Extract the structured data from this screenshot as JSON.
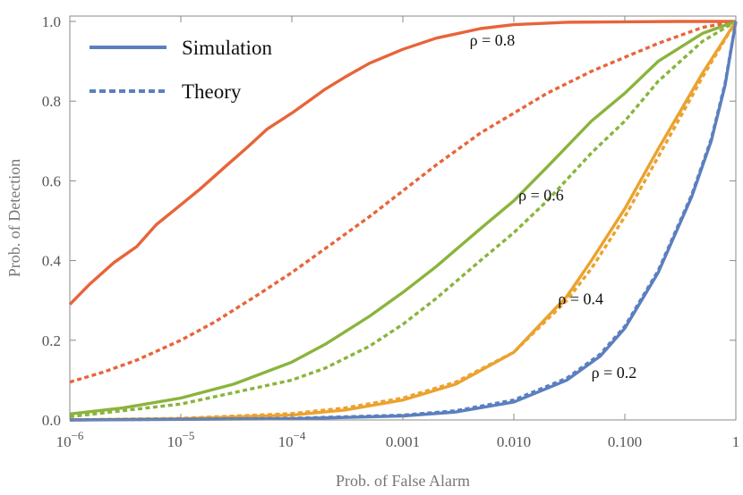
{
  "chart_data": {
    "type": "line",
    "xscale": "log",
    "xlim": [
      1e-06,
      1
    ],
    "ylim": [
      0,
      1
    ],
    "xlabel": "Prob. of False Alarm",
    "ylabel": "Prob. of Detection",
    "x_ticks": [
      {
        "value": 1e-06,
        "base": "10",
        "exp": "−6"
      },
      {
        "value": 1e-05,
        "base": "10",
        "exp": "−5"
      },
      {
        "value": 0.0001,
        "base": "10",
        "exp": "−4"
      },
      {
        "value": 0.001,
        "label": "0.001"
      },
      {
        "value": 0.01,
        "label": "0.010"
      },
      {
        "value": 0.1,
        "label": "0.100"
      },
      {
        "value": 1,
        "label": "1"
      }
    ],
    "y_ticks": [
      {
        "value": 0,
        "label": "0.0"
      },
      {
        "value": 0.2,
        "label": "0.2"
      },
      {
        "value": 0.4,
        "label": "0.4"
      },
      {
        "value": 0.6,
        "label": "0.6"
      },
      {
        "value": 0.8,
        "label": "0.8"
      },
      {
        "value": 1,
        "label": "1.0"
      }
    ],
    "grid": false,
    "legend": {
      "position": "top-left",
      "entries": [
        {
          "label": "Simulation",
          "style": "solid",
          "color": "#5b7fbf"
        },
        {
          "label": "Theory",
          "style": "dotted",
          "color": "#5b7fbf"
        }
      ]
    },
    "annotations": [
      {
        "text": "ρ = 0.8",
        "x": 0.004,
        "y": 0.94
      },
      {
        "text": "ρ = 0.6",
        "x": 0.011,
        "y": 0.55
      },
      {
        "text": "ρ = 0.4",
        "x": 0.025,
        "y": 0.29
      },
      {
        "text": "ρ = 0.2",
        "x": 0.05,
        "y": 0.105
      }
    ],
    "series": [
      {
        "color": "#e8643a",
        "style": "solid",
        "x": [
          1e-06,
          1.5e-06,
          2.5e-06,
          4e-06,
          6e-06,
          1e-05,
          1.5e-05,
          2.5e-05,
          4e-05,
          6e-05,
          0.0001,
          0.00015,
          0.0002,
          0.0003,
          0.0005,
          0.001,
          0.002,
          0.005,
          0.01,
          0.03,
          0.1,
          0.3,
          1
        ],
        "y": [
          0.29,
          0.34,
          0.395,
          0.435,
          0.49,
          0.54,
          0.58,
          0.635,
          0.685,
          0.73,
          0.77,
          0.805,
          0.83,
          0.86,
          0.895,
          0.93,
          0.958,
          0.982,
          0.992,
          0.998,
          0.999,
          1.0,
          1.0
        ]
      },
      {
        "color": "#e8643a",
        "style": "dotted",
        "x": [
          1e-06,
          2e-06,
          4e-06,
          1e-05,
          2e-05,
          5e-05,
          0.0001,
          0.0002,
          0.0005,
          0.001,
          0.002,
          0.005,
          0.01,
          0.02,
          0.05,
          0.1,
          0.2,
          0.5,
          1
        ],
        "y": [
          0.095,
          0.12,
          0.15,
          0.2,
          0.245,
          0.315,
          0.37,
          0.43,
          0.51,
          0.575,
          0.64,
          0.72,
          0.77,
          0.82,
          0.875,
          0.91,
          0.945,
          0.985,
          1.0
        ]
      },
      {
        "color": "#8ab43c",
        "style": "solid",
        "x": [
          1e-06,
          3e-06,
          1e-05,
          3e-05,
          0.0001,
          0.0002,
          0.0005,
          0.001,
          0.002,
          0.005,
          0.01,
          0.02,
          0.05,
          0.1,
          0.2,
          0.5,
          1
        ],
        "y": [
          0.015,
          0.03,
          0.055,
          0.09,
          0.145,
          0.19,
          0.26,
          0.32,
          0.385,
          0.48,
          0.55,
          0.635,
          0.75,
          0.82,
          0.9,
          0.97,
          1.0
        ]
      },
      {
        "color": "#8ab43c",
        "style": "dotted",
        "x": [
          1e-06,
          1e-05,
          0.0001,
          0.0002,
          0.0005,
          0.001,
          0.002,
          0.005,
          0.01,
          0.02,
          0.05,
          0.1,
          0.2,
          0.5,
          1
        ],
        "y": [
          0.008,
          0.04,
          0.1,
          0.13,
          0.185,
          0.24,
          0.305,
          0.4,
          0.47,
          0.55,
          0.67,
          0.75,
          0.85,
          0.95,
          1.0
        ]
      },
      {
        "color": "#eba22f",
        "style": "solid",
        "x": [
          1e-06,
          1e-05,
          0.0001,
          0.0003,
          0.001,
          0.003,
          0.01,
          0.03,
          0.05,
          0.1,
          0.2,
          0.5,
          1
        ],
        "y": [
          0.0,
          0.003,
          0.012,
          0.025,
          0.05,
          0.09,
          0.17,
          0.31,
          0.4,
          0.53,
          0.68,
          0.87,
          1.0
        ]
      },
      {
        "color": "#eba22f",
        "style": "dotted",
        "x": [
          1e-06,
          1e-05,
          0.0001,
          0.0003,
          0.001,
          0.003,
          0.01,
          0.03,
          0.05,
          0.1,
          0.2,
          0.5,
          1
        ],
        "y": [
          0.0,
          0.004,
          0.016,
          0.03,
          0.055,
          0.095,
          0.17,
          0.3,
          0.38,
          0.51,
          0.66,
          0.86,
          1.0
        ]
      },
      {
        "color": "#5b7fbf",
        "style": "solid",
        "x": [
          1e-06,
          0.0001,
          0.001,
          0.003,
          0.01,
          0.03,
          0.06,
          0.1,
          0.2,
          0.4,
          0.6,
          0.8,
          1
        ],
        "y": [
          0.0,
          0.003,
          0.01,
          0.02,
          0.045,
          0.1,
          0.16,
          0.23,
          0.37,
          0.56,
          0.7,
          0.84,
          1.0
        ]
      },
      {
        "color": "#5b7fbf",
        "style": "dotted",
        "x": [
          1e-06,
          0.0001,
          0.001,
          0.003,
          0.01,
          0.03,
          0.06,
          0.1,
          0.2,
          0.4,
          0.6,
          0.8,
          1
        ],
        "y": [
          0.0,
          0.004,
          0.012,
          0.023,
          0.05,
          0.105,
          0.165,
          0.235,
          0.375,
          0.565,
          0.705,
          0.845,
          1.0
        ]
      }
    ]
  }
}
